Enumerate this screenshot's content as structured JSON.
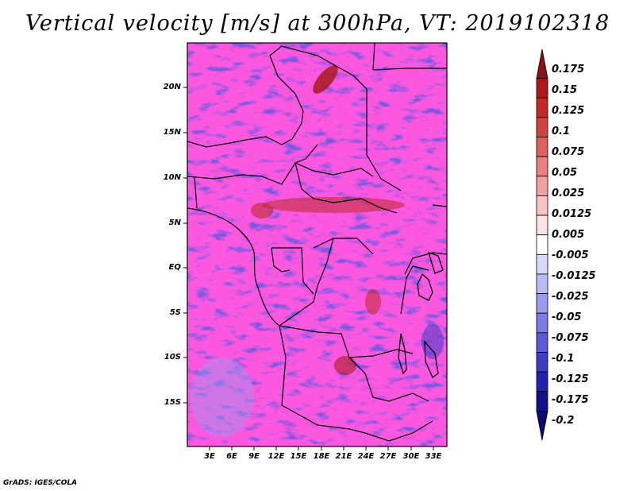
{
  "title": "Vertical velocity [m/s] at 300hPa, VT: 2019102318",
  "credit": "GrADS: IGES/COLA",
  "map": {
    "region": "Central Africa",
    "lat_labels": [
      "20N",
      "15N",
      "10N",
      "5N",
      "EQ",
      "5S",
      "10S",
      "15S"
    ],
    "lat_values": [
      20,
      15,
      10,
      5,
      0,
      -5,
      -10,
      -15
    ],
    "lon_labels": [
      "3E",
      "6E",
      "9E",
      "12E",
      "15E",
      "18E",
      "21E",
      "24E",
      "27E",
      "30E",
      "33E"
    ],
    "lon_values": [
      3,
      6,
      9,
      12,
      15,
      18,
      21,
      24,
      27,
      30,
      33
    ],
    "lat_range": [
      -20,
      25
    ],
    "lon_range": [
      0.5,
      35
    ]
  },
  "colorbar": {
    "labels": [
      "0.175",
      "0.15",
      "0.125",
      "0.1",
      "0.075",
      "0.05",
      "0.025",
      "0.0125",
      "0.005",
      "-0.005",
      "-0.0125",
      "-0.025",
      "-0.05",
      "-0.075",
      "-0.1",
      "-0.125",
      "-0.175",
      "-0.2"
    ],
    "colors": [
      "#8b0f13",
      "#a91a1c",
      "#c02a2a",
      "#cf4343",
      "#dc6060",
      "#e78080",
      "#f0a2a2",
      "#f6c4c4",
      "#fbe3e3",
      "#ffffff",
      "#d8d8fb",
      "#babaf6",
      "#9a9aee",
      "#7b7be3",
      "#5b5bd6",
      "#3c3cc4",
      "#2323aa",
      "#14108a",
      "#0f0a70"
    ]
  }
}
